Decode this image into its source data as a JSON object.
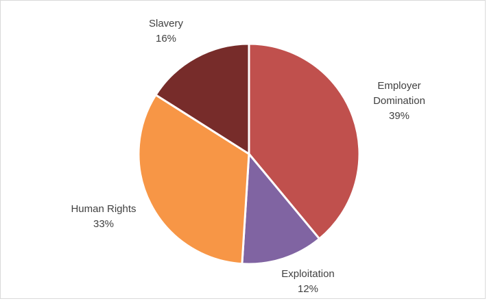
{
  "chart_data": {
    "type": "pie",
    "title": "",
    "categories": [
      "Employer Domination",
      "Exploitation",
      "Human Rights",
      "Slavery"
    ],
    "values": [
      39,
      12,
      33,
      16
    ],
    "label_lines": [
      [
        "Employer",
        "Domination",
        "39%"
      ],
      [
        "Exploitation",
        "12%"
      ],
      [
        "Human Rights",
        "33%"
      ],
      [
        "Slavery",
        "16%"
      ]
    ],
    "colors": [
      "#c0504d",
      "#8064a2",
      "#f79646",
      "#772c2a"
    ],
    "start_angle_degrees": 0,
    "direction": "clockwise",
    "legend": "none",
    "labels": "outside-end"
  }
}
